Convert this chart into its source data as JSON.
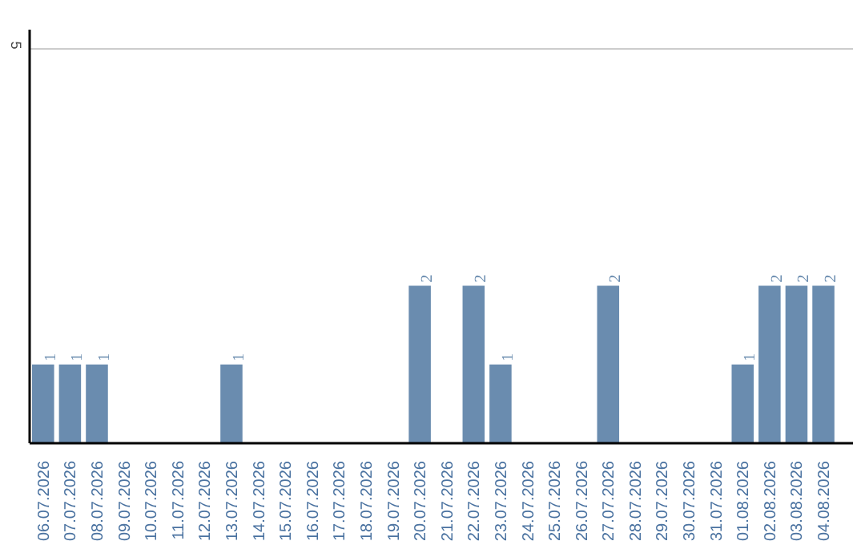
{
  "chart_data": {
    "type": "bar",
    "categories": [
      "06.07.2026",
      "07.07.2026",
      "08.07.2026",
      "09.07.2026",
      "10.07.2026",
      "11.07.2026",
      "12.07.2026",
      "13.07.2026",
      "14.07.2026",
      "15.07.2026",
      "16.07.2026",
      "17.07.2026",
      "18.07.2026",
      "19.07.2026",
      "20.07.2026",
      "21.07.2026",
      "22.07.2026",
      "23.07.2026",
      "24.07.2026",
      "25.07.2026",
      "26.07.2026",
      "27.07.2026",
      "28.07.2026",
      "29.07.2026",
      "30.07.2026",
      "31.07.2026",
      "01.08.2026",
      "02.08.2026",
      "03.08.2026",
      "04.08.2026"
    ],
    "values": [
      1,
      1,
      1,
      0,
      0,
      0,
      0,
      1,
      0,
      0,
      0,
      0,
      0,
      0,
      2,
      0,
      2,
      1,
      0,
      0,
      0,
      2,
      0,
      0,
      0,
      0,
      1,
      2,
      2,
      2
    ],
    "value_labels": [
      "1",
      "1",
      "1",
      null,
      null,
      null,
      null,
      "1",
      null,
      null,
      null,
      null,
      null,
      null,
      "2",
      null,
      "2",
      "1",
      null,
      null,
      null,
      "2",
      null,
      null,
      null,
      null,
      "1",
      "2",
      "2",
      "2"
    ],
    "color": "#6a8caf",
    "ylim": [
      0,
      5.25
    ],
    "yticks": [
      5
    ],
    "grid": "y"
  }
}
